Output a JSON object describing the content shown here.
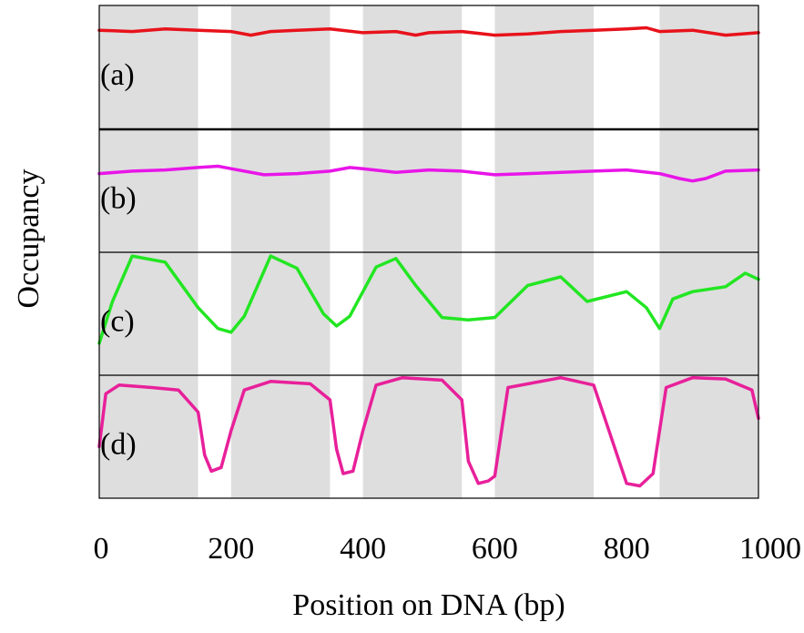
{
  "chart_data": {
    "type": "line",
    "ylabel": "Occupancy",
    "xlabel": "Position on DNA (bp)",
    "xlim": [
      0,
      1000
    ],
    "x_ticks": [
      0,
      200,
      400,
      600,
      800,
      1000
    ],
    "x_tick_labels": [
      "0",
      "200",
      "400",
      "600",
      "800",
      "1000"
    ],
    "shaded_regions": [
      [
        0,
        150
      ],
      [
        200,
        350
      ],
      [
        400,
        550
      ],
      [
        600,
        750
      ],
      [
        850,
        1000
      ]
    ],
    "shade_color": "#dedede",
    "panels": [
      {
        "label": "(a)",
        "color": "#e8121b",
        "ylim": [
          0,
          1
        ],
        "x": [
          0,
          50,
          100,
          150,
          200,
          230,
          260,
          300,
          350,
          400,
          450,
          480,
          500,
          550,
          600,
          650,
          700,
          750,
          800,
          830,
          850,
          900,
          950,
          1000
        ],
        "y": [
          0.8,
          0.79,
          0.81,
          0.8,
          0.79,
          0.76,
          0.79,
          0.8,
          0.81,
          0.78,
          0.79,
          0.76,
          0.78,
          0.79,
          0.76,
          0.77,
          0.79,
          0.8,
          0.81,
          0.82,
          0.79,
          0.8,
          0.76,
          0.78
        ]
      },
      {
        "label": "(b)",
        "color": "#e815e8",
        "ylim": [
          0,
          1
        ],
        "x": [
          0,
          50,
          100,
          150,
          180,
          200,
          250,
          300,
          350,
          380,
          400,
          450,
          500,
          550,
          600,
          650,
          700,
          750,
          800,
          850,
          880,
          900,
          920,
          950,
          1000
        ],
        "y": [
          0.64,
          0.66,
          0.67,
          0.69,
          0.7,
          0.68,
          0.63,
          0.64,
          0.66,
          0.69,
          0.68,
          0.65,
          0.67,
          0.66,
          0.63,
          0.64,
          0.65,
          0.66,
          0.67,
          0.64,
          0.6,
          0.58,
          0.6,
          0.66,
          0.67
        ]
      },
      {
        "label": "(c)",
        "color": "#22e622",
        "ylim": [
          0,
          1
        ],
        "x": [
          0,
          20,
          50,
          100,
          150,
          180,
          200,
          220,
          260,
          300,
          340,
          360,
          380,
          420,
          450,
          480,
          520,
          560,
          600,
          650,
          700,
          740,
          800,
          830,
          850,
          870,
          900,
          950,
          980,
          1000
        ],
        "y": [
          0.26,
          0.6,
          0.97,
          0.92,
          0.55,
          0.38,
          0.35,
          0.48,
          0.97,
          0.87,
          0.5,
          0.4,
          0.48,
          0.88,
          0.95,
          0.73,
          0.47,
          0.45,
          0.47,
          0.73,
          0.8,
          0.6,
          0.68,
          0.55,
          0.38,
          0.62,
          0.68,
          0.72,
          0.83,
          0.78
        ]
      },
      {
        "label": "(d)",
        "color": "#e8209a",
        "ylim": [
          0,
          1
        ],
        "x": [
          0,
          10,
          30,
          80,
          120,
          150,
          160,
          170,
          185,
          200,
          220,
          260,
          320,
          350,
          360,
          370,
          385,
          400,
          420,
          460,
          520,
          550,
          560,
          575,
          590,
          600,
          620,
          700,
          750,
          770,
          800,
          820,
          840,
          860,
          900,
          950,
          990,
          1000
        ],
        "y": [
          0.42,
          0.85,
          0.92,
          0.9,
          0.88,
          0.7,
          0.35,
          0.22,
          0.25,
          0.55,
          0.88,
          0.95,
          0.93,
          0.8,
          0.4,
          0.2,
          0.22,
          0.55,
          0.92,
          0.98,
          0.96,
          0.8,
          0.3,
          0.12,
          0.14,
          0.18,
          0.9,
          0.98,
          0.92,
          0.6,
          0.12,
          0.1,
          0.2,
          0.9,
          0.98,
          0.97,
          0.88,
          0.65
        ]
      }
    ]
  }
}
